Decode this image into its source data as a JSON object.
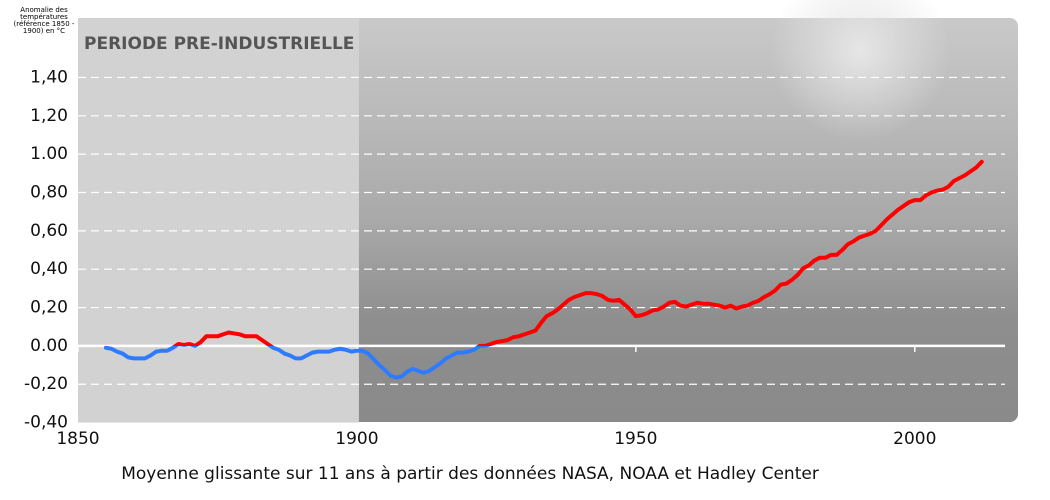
{
  "chart_data": {
    "type": "line",
    "y_axis_label": "Anomalie des températures (référence 1850 - 1900) en °C",
    "caption": "Moyenne glissante sur 11 ans à partir des données NASA, NOAA et Hadley Center",
    "shaded_period": {
      "range": [
        1850,
        1900
      ],
      "label": "PERIODE PRE-INDUSTRIELLE"
    },
    "xlim": [
      1850,
      2018.5
    ],
    "ylim": [
      -0.4,
      1.71
    ],
    "xticks": [
      1850,
      1900,
      1950,
      2000
    ],
    "yticks": [
      {
        "value": -0.4,
        "label": "-0,40"
      },
      {
        "value": -0.2,
        "label": "-0,20"
      },
      {
        "value": 0,
        "label": "0.00"
      },
      {
        "value": 0.2,
        "label": "0,20"
      },
      {
        "value": 0.4,
        "label": "0,40"
      },
      {
        "value": 0.6,
        "label": "0,60"
      },
      {
        "value": 0.8,
        "label": "0,80"
      },
      {
        "value": 1.0,
        "label": "1.00"
      },
      {
        "value": 1.2,
        "label": "1,20"
      },
      {
        "value": 1.4,
        "label": "1,40"
      }
    ],
    "grid": true,
    "positive_color": "#ff0000",
    "negative_color": "#2f7bff",
    "x": [
      1855,
      1856,
      1857,
      1858,
      1859,
      1860,
      1861,
      1862,
      1863,
      1864,
      1865,
      1866,
      1867,
      1868,
      1869,
      1870,
      1871,
      1872,
      1873,
      1874,
      1875,
      1876,
      1877,
      1878,
      1879,
      1880,
      1881,
      1882,
      1883,
      1884,
      1885,
      1886,
      1887,
      1888,
      1889,
      1890,
      1891,
      1892,
      1893,
      1894,
      1895,
      1896,
      1897,
      1898,
      1899,
      1900,
      1901,
      1902,
      1903,
      1904,
      1905,
      1906,
      1907,
      1908,
      1909,
      1910,
      1911,
      1912,
      1913,
      1914,
      1915,
      1916,
      1917,
      1918,
      1919,
      1920,
      1921,
      1922,
      1923,
      1924,
      1925,
      1926,
      1927,
      1928,
      1929,
      1930,
      1931,
      1932,
      1933,
      1934,
      1935,
      1936,
      1937,
      1938,
      1939,
      1940,
      1941,
      1942,
      1943,
      1944,
      1945,
      1946,
      1947,
      1948,
      1949,
      1950,
      1951,
      1952,
      1953,
      1954,
      1955,
      1956,
      1957,
      1958,
      1959,
      1960,
      1961,
      1962,
      1963,
      1964,
      1965,
      1966,
      1967,
      1968,
      1969,
      1970,
      1971,
      1972,
      1973,
      1974,
      1975,
      1976,
      1977,
      1978,
      1979,
      1980,
      1981,
      1982,
      1983,
      1984,
      1985,
      1986,
      1987,
      1988,
      1989,
      1990,
      1991,
      1992,
      1993,
      1994,
      1995,
      1996,
      1997,
      1998,
      1999,
      2000,
      2001,
      2002,
      2003,
      2004,
      2005,
      2006,
      2007,
      2008,
      2009,
      2010,
      2011,
      2012
    ],
    "values": [
      -0.01,
      -0.015,
      -0.03,
      -0.04,
      -0.06,
      -0.065,
      -0.065,
      -0.065,
      -0.05,
      -0.03,
      -0.025,
      -0.025,
      -0.01,
      0.01,
      0.005,
      0.01,
      0.0,
      0.02,
      0.05,
      0.05,
      0.05,
      0.06,
      0.07,
      0.065,
      0.06,
      0.05,
      0.05,
      0.05,
      0.03,
      0.01,
      -0.01,
      -0.02,
      -0.04,
      -0.05,
      -0.065,
      -0.065,
      -0.05,
      -0.035,
      -0.03,
      -0.03,
      -0.03,
      -0.02,
      -0.015,
      -0.02,
      -0.03,
      -0.025,
      -0.025,
      -0.04,
      -0.07,
      -0.1,
      -0.125,
      -0.155,
      -0.165,
      -0.16,
      -0.135,
      -0.12,
      -0.13,
      -0.14,
      -0.13,
      -0.11,
      -0.09,
      -0.065,
      -0.05,
      -0.035,
      -0.035,
      -0.03,
      -0.02,
      0.0,
      0.0,
      0.01,
      0.02,
      0.025,
      0.03,
      0.045,
      0.05,
      0.06,
      0.07,
      0.08,
      0.12,
      0.155,
      0.17,
      0.19,
      0.215,
      0.24,
      0.255,
      0.265,
      0.275,
      0.275,
      0.27,
      0.26,
      0.24,
      0.235,
      0.24,
      0.215,
      0.19,
      0.155,
      0.16,
      0.17,
      0.185,
      0.19,
      0.205,
      0.225,
      0.23,
      0.21,
      0.205,
      0.215,
      0.225,
      0.22,
      0.22,
      0.215,
      0.21,
      0.2,
      0.21,
      0.195,
      0.205,
      0.21,
      0.225,
      0.235,
      0.255,
      0.27,
      0.29,
      0.32,
      0.325,
      0.345,
      0.37,
      0.405,
      0.42,
      0.445,
      0.46,
      0.46,
      0.475,
      0.475,
      0.5,
      0.53,
      0.545,
      0.565,
      0.575,
      0.585,
      0.6,
      0.63,
      0.66,
      0.685,
      0.71,
      0.73,
      0.75,
      0.76,
      0.76,
      0.785,
      0.8,
      0.81,
      0.815,
      0.83,
      0.86,
      0.875,
      0.89,
      0.91,
      0.93,
      0.96
    ]
  }
}
